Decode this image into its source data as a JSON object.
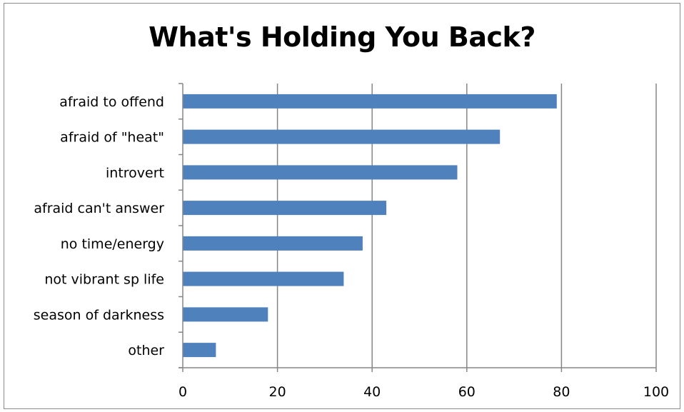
{
  "chart_data": {
    "type": "bar",
    "orientation": "horizontal",
    "title": "What's Holding You Back?",
    "categories": [
      "afraid to offend",
      "afraid of \"heat\"",
      "introvert",
      "afraid can't answer",
      "no time/energy",
      "not vibrant sp life",
      "season of darkness",
      "other"
    ],
    "values": [
      79,
      67,
      58,
      43,
      38,
      34,
      18,
      7
    ],
    "xlim": [
      0,
      100
    ],
    "xticks": [
      0,
      20,
      40,
      60,
      80,
      100
    ],
    "grid": true,
    "legend": false,
    "colors": {
      "bar": "#4f81bd",
      "grid": "#868686",
      "axis": "#868686"
    }
  }
}
